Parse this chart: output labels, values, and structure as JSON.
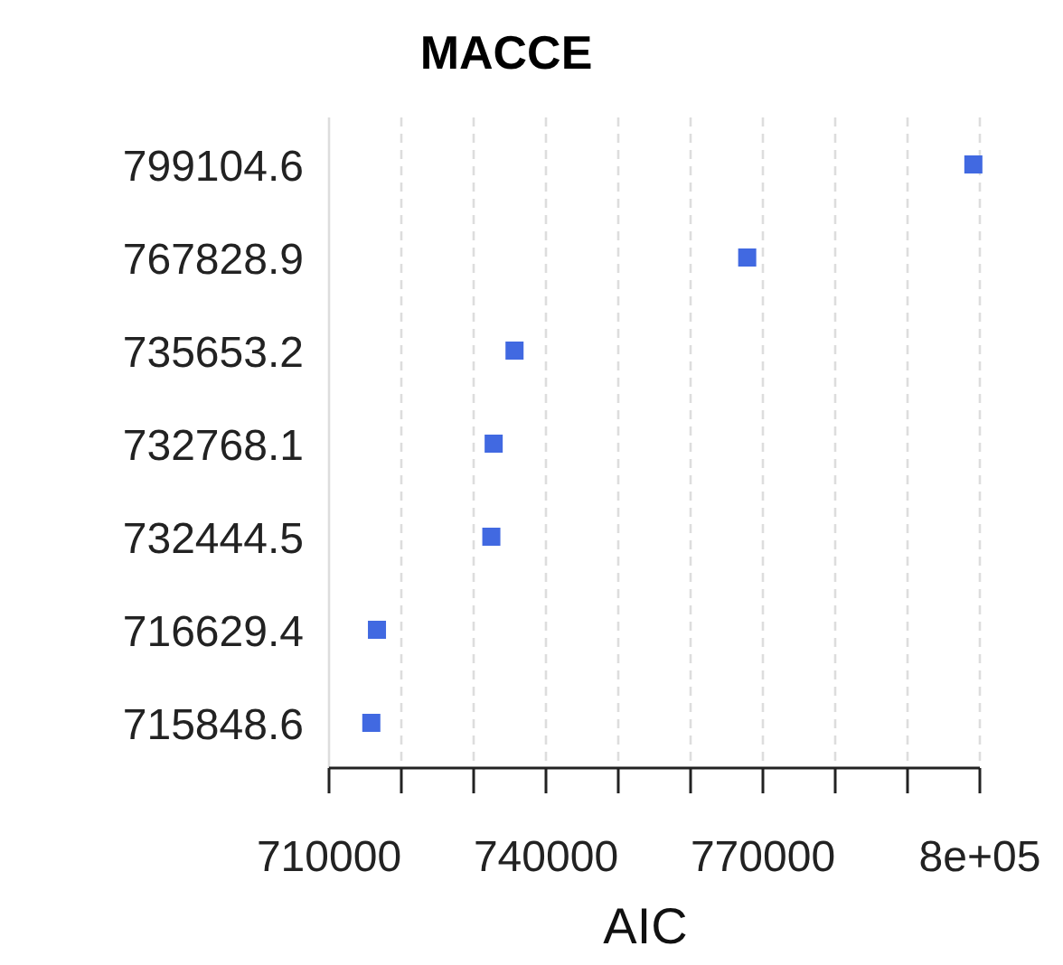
{
  "chart_data": {
    "type": "scatter",
    "title": "MACCE",
    "xlabel": "AIC",
    "orientation": "horizontal",
    "categories": [
      "799104.6",
      "767828.9",
      "735653.2",
      "732768.1",
      "732444.5",
      "716629.4",
      "715848.6"
    ],
    "values": [
      799104.6,
      767828.9,
      735653.2,
      732768.1,
      732444.5,
      716629.4,
      715848.6
    ],
    "color": "#4169e1",
    "marker": "square",
    "grid": "x",
    "line_style": "dashed",
    "xlim": [
      710000,
      800000
    ],
    "xticks": [
      710000,
      {
        "value": 720000,
        "label": null
      },
      {
        "value": 730000,
        "label": null
      },
      740000,
      {
        "value": 750000,
        "label": null
      },
      {
        "value": 760000,
        "label": null
      },
      770000,
      {
        "value": 780000,
        "label": null
      },
      {
        "value": 790000,
        "label": null
      },
      {
        "value": 800000,
        "label": "8e+05"
      }
    ]
  }
}
